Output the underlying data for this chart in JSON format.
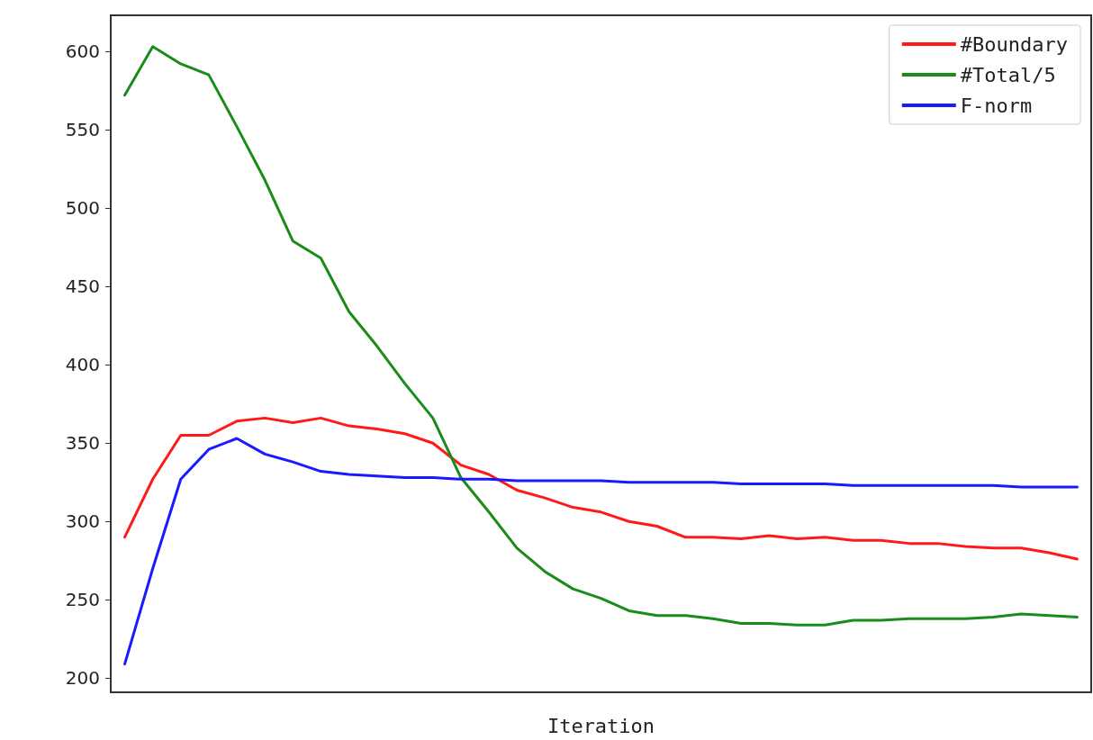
{
  "chart_data": {
    "type": "line",
    "xlabel": "Iteration",
    "categories": [
      null,
      null,
      null,
      null,
      null,
      null,
      null,
      null,
      null,
      null,
      null,
      null,
      null,
      null,
      null,
      null,
      null,
      null,
      null,
      null,
      null,
      null,
      null,
      null,
      null,
      null,
      null,
      null,
      null,
      null,
      null,
      null,
      null,
      null,
      null
    ],
    "series": [
      {
        "name": "#Boundary",
        "color": "#ff1a1a",
        "values": [
          290,
          327,
          355,
          355,
          364,
          366,
          363,
          366,
          361,
          359,
          356,
          350,
          336,
          330,
          320,
          315,
          309,
          306,
          300,
          297,
          290,
          290,
          289,
          291,
          289,
          290,
          288,
          288,
          286,
          286,
          284,
          283,
          283,
          280,
          276
        ]
      },
      {
        "name": "#Total/5",
        "color": "#1a8c1a",
        "values": [
          572,
          603,
          592,
          585,
          552,
          518,
          479,
          468,
          434,
          412,
          388,
          366,
          328,
          306,
          283,
          268,
          257,
          251,
          243,
          240,
          240,
          238,
          235,
          235,
          234,
          234,
          237,
          237,
          238,
          238,
          238,
          239,
          241,
          240,
          239
        ]
      },
      {
        "name": "F-norm",
        "color": "#1a1aff",
        "values": [
          209,
          270,
          327,
          346,
          353,
          343,
          338,
          332,
          330,
          329,
          328,
          328,
          327,
          327,
          326,
          326,
          326,
          326,
          325,
          325,
          325,
          325,
          324,
          324,
          324,
          324,
          323,
          323,
          323,
          323,
          323,
          323,
          322,
          322,
          322
        ]
      }
    ],
    "ylim": [
      191,
      623
    ],
    "yticks": [
      200,
      250,
      300,
      350,
      400,
      450,
      500,
      550,
      600
    ],
    "grid": false,
    "legend": "top right",
    "marker": "none",
    "line_style": "solid"
  }
}
